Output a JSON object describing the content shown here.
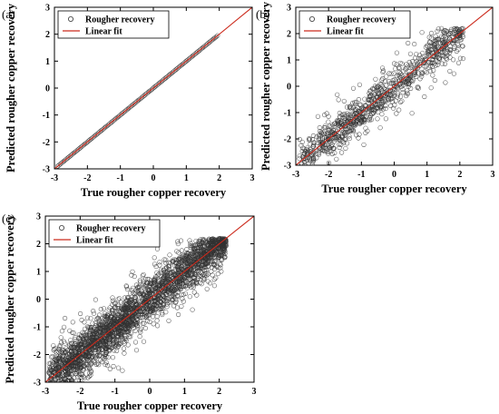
{
  "chart_data": [
    {
      "type": "scatter",
      "panel_label": "(a)",
      "xlabel": "True rougher copper recovery",
      "ylabel": "Predicted rougher copper recovery",
      "xlim": [
        -3,
        3
      ],
      "ylim": [
        -3,
        3
      ],
      "xticks": [
        "-3",
        "-2",
        "-1",
        "0",
        "1",
        "2",
        "3"
      ],
      "yticks": [
        "-3",
        "-2",
        "-1",
        "0",
        "1",
        "2",
        "3"
      ],
      "grid": false,
      "legend_position": "top-left",
      "series": [
        {
          "name": "Rougher recovery",
          "marker": "open-circle",
          "color": "#333333",
          "x_range": [
            -2.9,
            1.95
          ],
          "spread": 0.0,
          "count": 130
        },
        {
          "name": "Linear fit",
          "marker": "line",
          "color": "#cc2a1c",
          "slope": 1,
          "intercept": 0
        }
      ]
    },
    {
      "type": "scatter",
      "panel_label": "(b)",
      "xlabel": "True rougher copper recovery",
      "ylabel": "Predicted rougher copper recovery",
      "xlim": [
        -3,
        3
      ],
      "ylim": [
        -3,
        3
      ],
      "xticks": [
        "-3",
        "-2",
        "-1",
        "0",
        "1",
        "2",
        "3"
      ],
      "yticks": [
        "-3",
        "-2",
        "-1",
        "0",
        "1",
        "2",
        "3"
      ],
      "grid": false,
      "legend_position": "top-left",
      "series": [
        {
          "name": "Rougher recovery",
          "marker": "open-circle",
          "color": "#333333",
          "x_range": [
            -2.9,
            2.1
          ],
          "spread": 0.35,
          "count": 900
        },
        {
          "name": "Linear fit",
          "marker": "line",
          "color": "#cc2a1c",
          "slope": 1,
          "intercept": 0
        }
      ]
    },
    {
      "type": "scatter",
      "panel_label": "(c)",
      "xlabel": "True rougher copper recovery",
      "ylabel": "Predicted rougher copper recovery",
      "xlim": [
        -3,
        3
      ],
      "ylim": [
        -3,
        3
      ],
      "xticks": [
        "-3",
        "-2",
        "-1",
        "0",
        "1",
        "2",
        "3"
      ],
      "yticks": [
        "-3",
        "-2",
        "-1",
        "0",
        "1",
        "2",
        "3"
      ],
      "grid": false,
      "legend_position": "top-left",
      "series": [
        {
          "name": "Rougher recovery",
          "marker": "open-circle",
          "color": "#333333",
          "x_range": [
            -2.9,
            2.2
          ],
          "spread": 0.4,
          "count": 2600
        },
        {
          "name": "Linear fit",
          "marker": "line",
          "color": "#cc2a1c",
          "slope": 1,
          "intercept": 0
        }
      ]
    }
  ]
}
